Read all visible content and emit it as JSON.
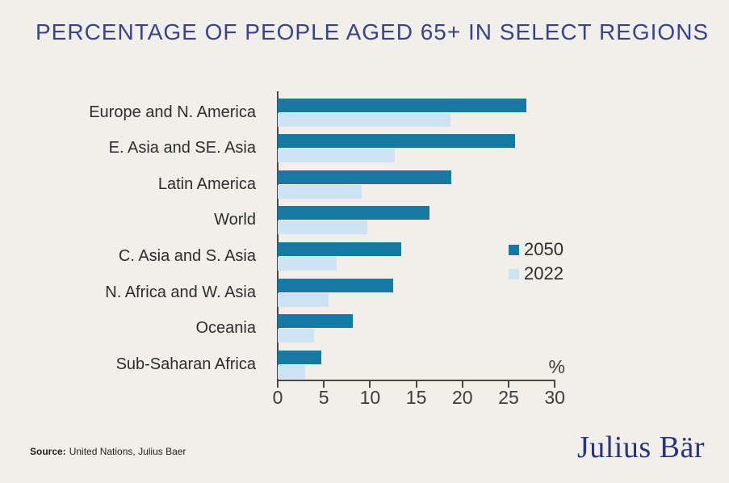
{
  "title": "PERCENTAGE OF PEOPLE AGED 65+ IN SELECT REGIONS",
  "chart_data": {
    "type": "bar",
    "orientation": "horizontal",
    "title": "PERCENTAGE OF PEOPLE AGED 65+ IN SELECT REGIONS",
    "categories": [
      "Europe and N. America",
      "E. Asia and SE. Asia",
      "Latin America",
      "World",
      "C. Asia and S. Asia",
      "N. Africa and W. Asia",
      "Oceania",
      "Sub-Saharan Africa"
    ],
    "series": [
      {
        "name": "2050",
        "color": "#1679A2",
        "values": [
          26.9,
          25.7,
          18.8,
          16.4,
          13.4,
          12.5,
          8.1,
          4.7
        ]
      },
      {
        "name": "2022",
        "color": "#CDE3F3",
        "values": [
          18.7,
          12.7,
          9.1,
          9.7,
          6.4,
          5.5,
          3.9,
          3.0
        ]
      }
    ],
    "xlabel": "%",
    "x_ticks": [
      0,
      5,
      10,
      15,
      20,
      25,
      30
    ],
    "xlim": [
      0,
      30
    ],
    "grid": false,
    "legend_position": "inside-right-middle"
  },
  "footer": {
    "source_label": "Source:",
    "source_text": "United Nations, Julius Baer",
    "logo_text": "Julius Bär"
  },
  "colors": {
    "background": "#F1EFEA",
    "title": "#3A418F",
    "bar_2050": "#1679A2",
    "bar_2022": "#CDE3F3",
    "axis": "#474747",
    "label_text": "#2D2D2D",
    "logo_navy": "#293481"
  }
}
